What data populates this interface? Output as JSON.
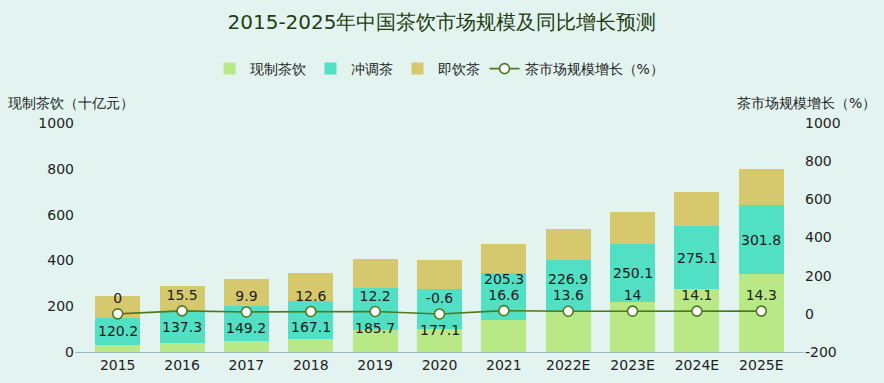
{
  "chart_data": {
    "type": "bar",
    "title": "2015-2025年中国茶饮市场规模及同比增长预测",
    "y_label": "现制茶饮（十亿元）",
    "y2_label": "茶市场规模增长（%）",
    "categories": [
      "2015",
      "2016",
      "2017",
      "2018",
      "2019",
      "2020",
      "2021",
      "2022E",
      "2023E",
      "2024E",
      "2025E"
    ],
    "stacked": true,
    "series": [
      {
        "name": "现制茶饮",
        "type": "bar",
        "color": "#b9e886",
        "values": [
          30,
          40,
          50,
          55,
          95,
          100,
          140,
          175,
          220,
          275,
          340
        ]
      },
      {
        "name": "冲调茶",
        "type": "bar",
        "color": "#52e0c4",
        "data_labels": true,
        "values": [
          120.2,
          137.3,
          149.2,
          167.1,
          185.7,
          177.1,
          205.3,
          226.9,
          250.1,
          275.1,
          301.8
        ]
      },
      {
        "name": "即饮茶",
        "type": "bar",
        "color": "#d6c86c",
        "values": [
          96,
          110,
          120,
          123,
          125,
          125,
          127,
          135,
          141,
          149,
          157
        ]
      },
      {
        "name": "茶市场规模增长（%）",
        "type": "line",
        "axis": "y2",
        "color": "#4d7a1f",
        "marker": "circle",
        "line_style": "solid",
        "data_labels": true,
        "values": [
          0,
          15.5,
          9.9,
          12.6,
          12.2,
          -0.6,
          16.6,
          13.6,
          14,
          14.1,
          14.3
        ]
      }
    ],
    "ylim": [
      0,
      1000
    ],
    "yticks": [
      0,
      200,
      400,
      600,
      800,
      1000
    ],
    "y2lim": [
      -200,
      1000
    ],
    "y2ticks": [
      -200,
      0,
      200,
      400,
      600,
      800,
      1000
    ],
    "legend": "top",
    "grid": false
  }
}
